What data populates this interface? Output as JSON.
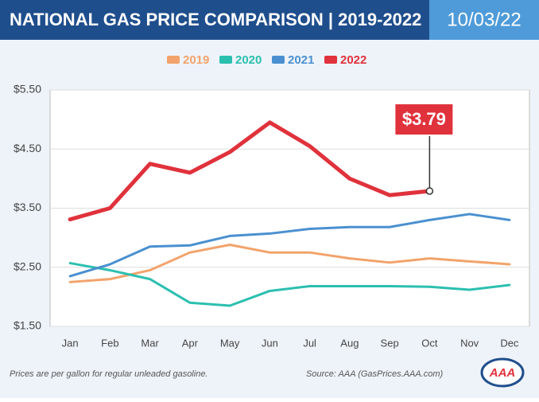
{
  "header": {
    "title": "NATIONAL GAS PRICE COMPARISON | 2019-2022",
    "date": "10/03/22"
  },
  "chart_data": {
    "type": "line",
    "categories": [
      "Jan",
      "Feb",
      "Mar",
      "Apr",
      "May",
      "Jun",
      "Jul",
      "Aug",
      "Sep",
      "Oct",
      "Nov",
      "Dec"
    ],
    "series": [
      {
        "name": "2019",
        "color": "#f2a36b",
        "values": [
          2.25,
          2.3,
          2.45,
          2.75,
          2.88,
          2.75,
          2.75,
          2.65,
          2.58,
          2.65,
          2.6,
          2.55
        ]
      },
      {
        "name": "2020",
        "color": "#2bbfb0",
        "values": [
          2.57,
          2.45,
          2.3,
          1.9,
          1.85,
          2.1,
          2.18,
          2.18,
          2.18,
          2.17,
          2.12,
          2.2
        ]
      },
      {
        "name": "2021",
        "color": "#4a90d0",
        "values": [
          2.35,
          2.55,
          2.85,
          2.87,
          3.03,
          3.07,
          3.15,
          3.18,
          3.18,
          3.3,
          3.4,
          3.3
        ]
      },
      {
        "name": "2022",
        "color": "#e0323c",
        "values": [
          3.31,
          3.5,
          4.25,
          4.1,
          4.45,
          4.95,
          4.55,
          4.0,
          3.72,
          3.79,
          null,
          null
        ],
        "value_labels": [
          null,
          null,
          null,
          null,
          null,
          null,
          null,
          null,
          null,
          "$3.79",
          null,
          null
        ]
      }
    ],
    "ylim": [
      1.5,
      5.5
    ],
    "yticks": [
      {
        "value": 1.5,
        "label": "$1.50"
      },
      {
        "value": 2.5,
        "label": "$2.50"
      },
      {
        "value": 3.5,
        "label": "$3.50"
      },
      {
        "value": 4.5,
        "label": "$4.50"
      },
      {
        "value": 5.5,
        "label": "$5.50"
      }
    ],
    "grid": true
  },
  "footer": {
    "note": "Prices are per gallon for regular unleaded gasoline.",
    "source": "Source: AAA (GasPrices.AAA.com)",
    "logo": "AAA"
  }
}
